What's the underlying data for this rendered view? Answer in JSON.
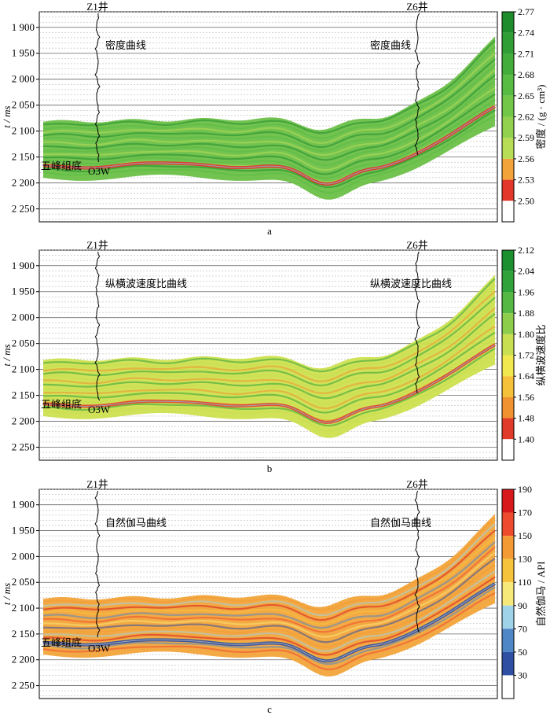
{
  "chart_data": [
    {
      "type": "heatmap",
      "panel_label": "a",
      "ylabel": "t / ms",
      "yticks": [
        "1 900",
        "1 950",
        "2 000",
        "2 050",
        "2 100",
        "2 150",
        "2 200",
        "2 250"
      ],
      "ytick_values": [
        1900,
        1950,
        2000,
        2050,
        2100,
        2150,
        2200,
        2250
      ],
      "ylim": [
        1870,
        2275
      ],
      "grid": true,
      "wells": [
        {
          "name": "Z1井",
          "curve_label": "密度曲线"
        },
        {
          "name": "Z6井",
          "curve_label": "密度曲线"
        }
      ],
      "horizon_label": "五峰组底",
      "marker_label": "O3W",
      "colorbar": {
        "label": "密度 / (g · cm³)",
        "ticks": [
          "2.77",
          "2.74",
          "2.71",
          "2.68",
          "2.65",
          "2.62",
          "2.59",
          "2.56",
          "2.53",
          "2.50"
        ],
        "min": 2.5,
        "max": 2.77,
        "colors": [
          "#1e8c2a",
          "#2f9e34",
          "#43ad3c",
          "#58bb42",
          "#72c748",
          "#92d14f",
          "#b7dc55",
          "#f2a43a",
          "#e2372a",
          "#ffffff"
        ]
      },
      "dominant_colors": {
        "body": "#6cc048",
        "base_stripe": "#e3312a"
      }
    },
    {
      "type": "heatmap",
      "panel_label": "b",
      "ylabel": "t / ms",
      "yticks": [
        "1 900",
        "1 950",
        "2 000",
        "2 050",
        "2 100",
        "2 150",
        "2 200",
        "2 250"
      ],
      "ytick_values": [
        1900,
        1950,
        2000,
        2050,
        2100,
        2150,
        2200,
        2250
      ],
      "ylim": [
        1870,
        2275
      ],
      "grid": true,
      "wells": [
        {
          "name": "Z1井",
          "curve_label": "纵横波速度比曲线"
        },
        {
          "name": "Z6井",
          "curve_label": "纵横波速度比曲线"
        }
      ],
      "horizon_label": "五峰组底",
      "marker_label": "O3W",
      "colorbar": {
        "label": "纵横波速度比",
        "ticks": [
          "2.12",
          "2.04",
          "1.96",
          "1.88",
          "1.80",
          "1.72",
          "1.64",
          "1.56",
          "1.48",
          "1.40"
        ],
        "min": 1.4,
        "max": 2.12,
        "colors": [
          "#1c8f2e",
          "#2fa23a",
          "#55b843",
          "#8ccd4b",
          "#c9df52",
          "#f0e84e",
          "#f5c13a",
          "#f0922f",
          "#e03a2a",
          "#ffffff"
        ]
      },
      "dominant_colors": {
        "body": "#cde04f",
        "base_stripe": "#e0442b"
      }
    },
    {
      "type": "heatmap",
      "panel_label": "c",
      "ylabel": "t / ms",
      "yticks": [
        "1 900",
        "1 950",
        "2 000",
        "2 050",
        "2 100",
        "2 150",
        "2 200",
        "2 250"
      ],
      "ytick_values": [
        1900,
        1950,
        2000,
        2050,
        2100,
        2150,
        2200,
        2250
      ],
      "ylim": [
        1870,
        2275
      ],
      "grid": true,
      "wells": [
        {
          "name": "Z1井",
          "curve_label": "自然伽马曲线"
        },
        {
          "name": "Z6井",
          "curve_label": "自然伽马曲线"
        }
      ],
      "horizon_label": "五峰组底",
      "marker_label": "O3W",
      "colorbar": {
        "label": "自然伽马 / API",
        "ticks": [
          "190",
          "170",
          "150",
          "130",
          "110",
          "90",
          "70",
          "50",
          "30"
        ],
        "min": 30,
        "max": 190,
        "colors": [
          "#d7191c",
          "#ee4a2e",
          "#f39a34",
          "#f6c43c",
          "#f7e87a",
          "#9fd3e8",
          "#4f86c6",
          "#2f4fa3",
          "#ffffff"
        ]
      },
      "dominant_colors": {
        "body": "#f2a43a",
        "base_stripe": "#2f4fa3"
      }
    }
  ]
}
